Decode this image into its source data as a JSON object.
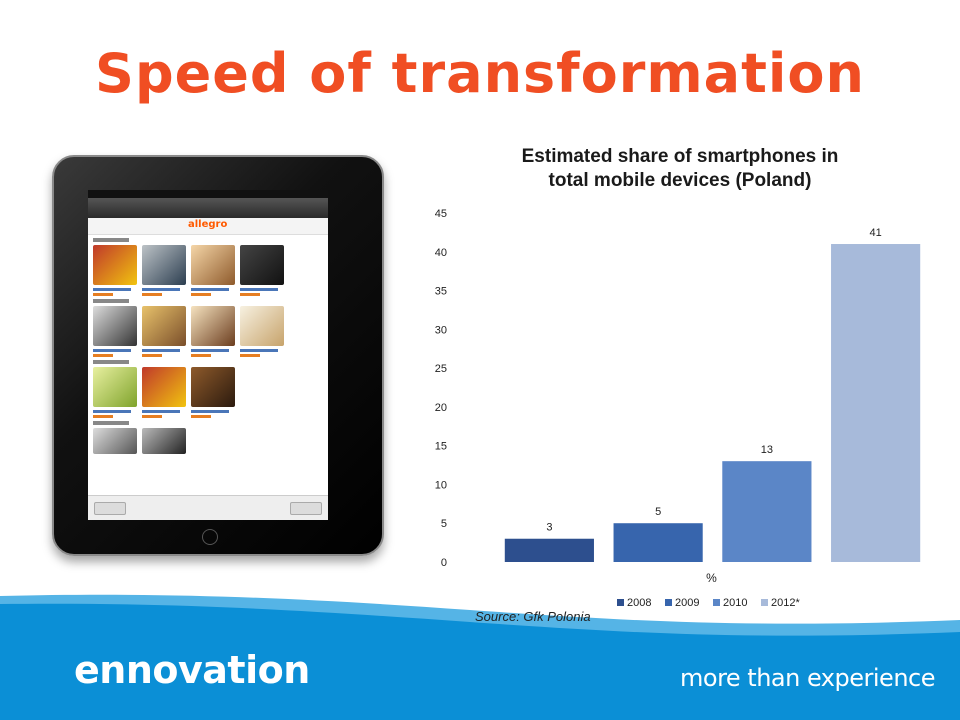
{
  "slide": {
    "title": "Speed of transformation",
    "source": "Source: Gfk Polonia",
    "logo_text": "ennovation",
    "tagline": "more than experience"
  },
  "tablet_screen": {
    "brand": "allegro"
  },
  "colors": {
    "title": "#f04e23",
    "footer_blue": "#0b8fd6",
    "footer_blue_light": "#55b4e6"
  },
  "chart_data": {
    "type": "bar",
    "title": "Estimated share of smartphones in total mobile devices (Poland)",
    "title_lines": [
      "Estimated share of smartphones in",
      "total mobile devices (Poland)"
    ],
    "xlabel": "%",
    "ylabel": "",
    "ylim": [
      0,
      45
    ],
    "yticks": [
      0,
      5,
      10,
      15,
      20,
      25,
      30,
      35,
      40,
      45
    ],
    "grid": false,
    "legend_position": "bottom",
    "categories": [
      "%"
    ],
    "series": [
      {
        "name": "2008",
        "values": [
          3
        ],
        "color": "#2d4f8e"
      },
      {
        "name": "2009",
        "values": [
          5
        ],
        "color": "#3765ad"
      },
      {
        "name": "2010",
        "values": [
          13
        ],
        "color": "#5b86c7"
      },
      {
        "name": "2012*",
        "values": [
          41
        ],
        "color": "#a7bada"
      }
    ],
    "data_labels": [
      "3",
      "5",
      "13",
      "41"
    ]
  }
}
